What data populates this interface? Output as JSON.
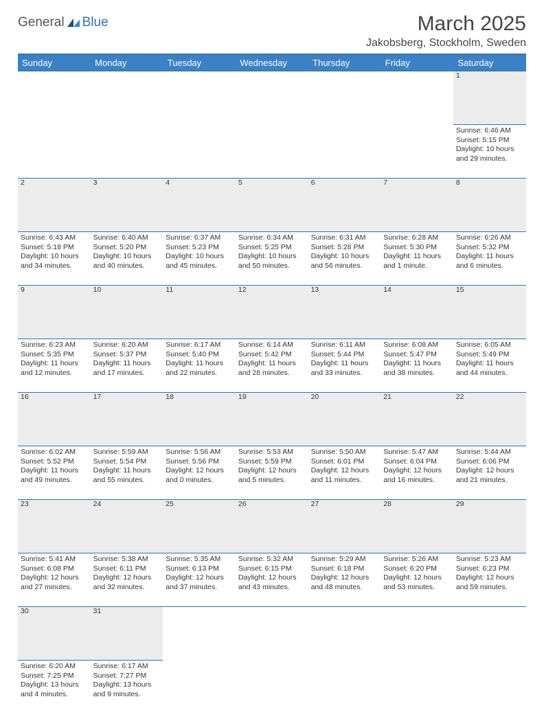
{
  "logo": {
    "text1": "General",
    "text2": "Blue"
  },
  "title": "March 2025",
  "location": "Jakobsberg, Stockholm, Sweden",
  "colors": {
    "header_bg": "#3b82c4",
    "accent": "#2f71b8",
    "daynum_bg": "#ececec",
    "page_bg": "#ffffff",
    "text": "#333333"
  },
  "day_headers": [
    "Sunday",
    "Monday",
    "Tuesday",
    "Wednesday",
    "Thursday",
    "Friday",
    "Saturday"
  ],
  "weeks": [
    [
      null,
      null,
      null,
      null,
      null,
      null,
      {
        "n": "1",
        "sunrise": "6:46 AM",
        "sunset": "5:15 PM",
        "daylight": "10 hours and 29 minutes."
      }
    ],
    [
      {
        "n": "2",
        "sunrise": "6:43 AM",
        "sunset": "5:18 PM",
        "daylight": "10 hours and 34 minutes."
      },
      {
        "n": "3",
        "sunrise": "6:40 AM",
        "sunset": "5:20 PM",
        "daylight": "10 hours and 40 minutes."
      },
      {
        "n": "4",
        "sunrise": "6:37 AM",
        "sunset": "5:23 PM",
        "daylight": "10 hours and 45 minutes."
      },
      {
        "n": "5",
        "sunrise": "6:34 AM",
        "sunset": "5:25 PM",
        "daylight": "10 hours and 50 minutes."
      },
      {
        "n": "6",
        "sunrise": "6:31 AM",
        "sunset": "5:28 PM",
        "daylight": "10 hours and 56 minutes."
      },
      {
        "n": "7",
        "sunrise": "6:28 AM",
        "sunset": "5:30 PM",
        "daylight": "11 hours and 1 minute."
      },
      {
        "n": "8",
        "sunrise": "6:26 AM",
        "sunset": "5:32 PM",
        "daylight": "11 hours and 6 minutes."
      }
    ],
    [
      {
        "n": "9",
        "sunrise": "6:23 AM",
        "sunset": "5:35 PM",
        "daylight": "11 hours and 12 minutes."
      },
      {
        "n": "10",
        "sunrise": "6:20 AM",
        "sunset": "5:37 PM",
        "daylight": "11 hours and 17 minutes."
      },
      {
        "n": "11",
        "sunrise": "6:17 AM",
        "sunset": "5:40 PM",
        "daylight": "11 hours and 22 minutes."
      },
      {
        "n": "12",
        "sunrise": "6:14 AM",
        "sunset": "5:42 PM",
        "daylight": "11 hours and 28 minutes."
      },
      {
        "n": "13",
        "sunrise": "6:11 AM",
        "sunset": "5:44 PM",
        "daylight": "11 hours and 33 minutes."
      },
      {
        "n": "14",
        "sunrise": "6:08 AM",
        "sunset": "5:47 PM",
        "daylight": "11 hours and 38 minutes."
      },
      {
        "n": "15",
        "sunrise": "6:05 AM",
        "sunset": "5:49 PM",
        "daylight": "11 hours and 44 minutes."
      }
    ],
    [
      {
        "n": "16",
        "sunrise": "6:02 AM",
        "sunset": "5:52 PM",
        "daylight": "11 hours and 49 minutes."
      },
      {
        "n": "17",
        "sunrise": "5:59 AM",
        "sunset": "5:54 PM",
        "daylight": "11 hours and 55 minutes."
      },
      {
        "n": "18",
        "sunrise": "5:56 AM",
        "sunset": "5:56 PM",
        "daylight": "12 hours and 0 minutes."
      },
      {
        "n": "19",
        "sunrise": "5:53 AM",
        "sunset": "5:59 PM",
        "daylight": "12 hours and 5 minutes."
      },
      {
        "n": "20",
        "sunrise": "5:50 AM",
        "sunset": "6:01 PM",
        "daylight": "12 hours and 11 minutes."
      },
      {
        "n": "21",
        "sunrise": "5:47 AM",
        "sunset": "6:04 PM",
        "daylight": "12 hours and 16 minutes."
      },
      {
        "n": "22",
        "sunrise": "5:44 AM",
        "sunset": "6:06 PM",
        "daylight": "12 hours and 21 minutes."
      }
    ],
    [
      {
        "n": "23",
        "sunrise": "5:41 AM",
        "sunset": "6:08 PM",
        "daylight": "12 hours and 27 minutes."
      },
      {
        "n": "24",
        "sunrise": "5:38 AM",
        "sunset": "6:11 PM",
        "daylight": "12 hours and 32 minutes."
      },
      {
        "n": "25",
        "sunrise": "5:35 AM",
        "sunset": "6:13 PM",
        "daylight": "12 hours and 37 minutes."
      },
      {
        "n": "26",
        "sunrise": "5:32 AM",
        "sunset": "6:15 PM",
        "daylight": "12 hours and 43 minutes."
      },
      {
        "n": "27",
        "sunrise": "5:29 AM",
        "sunset": "6:18 PM",
        "daylight": "12 hours and 48 minutes."
      },
      {
        "n": "28",
        "sunrise": "5:26 AM",
        "sunset": "6:20 PM",
        "daylight": "12 hours and 53 minutes."
      },
      {
        "n": "29",
        "sunrise": "5:23 AM",
        "sunset": "6:23 PM",
        "daylight": "12 hours and 59 minutes."
      }
    ],
    [
      {
        "n": "30",
        "sunrise": "6:20 AM",
        "sunset": "7:25 PM",
        "daylight": "13 hours and 4 minutes."
      },
      {
        "n": "31",
        "sunrise": "6:17 AM",
        "sunset": "7:27 PM",
        "daylight": "13 hours and 9 minutes."
      },
      null,
      null,
      null,
      null,
      null
    ]
  ],
  "labels": {
    "sunrise": "Sunrise:",
    "sunset": "Sunset:",
    "daylight": "Daylight:"
  }
}
